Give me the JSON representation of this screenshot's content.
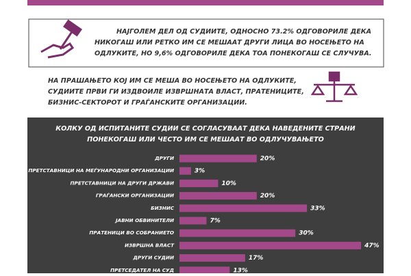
{
  "intro": {
    "lines": [
      "НАЈГОЛЕМ ДЕЛ ОД СУДИИТЕ, ОДНОСНО 73.2% ОДГОВОРИЛЕ ДЕКА",
      "НИКОГАШ ИЛИ РЕТКО ИМ СЕ МЕШААТ ДРУГИ ЛИЦА ВО НОСЕЊЕТО НА",
      "ОДЛУКИТЕ, НО 9,6% ОДГОВОРИЛЕ ДЕКА ТОА ПОНЕКОГАШ СЕ СЛУЧУВА."
    ]
  },
  "second": {
    "lines": [
      "НА ПРАШАЊЕТО КОЈ ИМ СЕ МЕША ВО НОСЕЊЕТО НА ОДЛУКИТЕ,",
      "СУДИИТЕ ПРВИ ГИ ИЗДВОИЛЕ ИЗВРШНАТА ВЛАСТ, ПРАТЕНИЦИТЕ,",
      "БИЗНИС-СЕКТОРОТ И ГРАЃАНСКИТЕ ОРГАНИЗАЦИИ."
    ]
  },
  "chart_data": {
    "type": "hbar",
    "title": [
      "КОЛКУ ОД ИСПИТАНИТЕ СУДИИ СЕ СОГЛАСУВААТ ДЕКА НАВЕДЕНИТЕ СТРАНИ",
      "ПОНЕКОГАШ ИЛИ ЧЕСТО ИМ СЕ МЕШААТ ВО ОДЛУЧУВАЊЕТО"
    ],
    "categories": [
      "ДРУГИ",
      "ПРЕТСТАВНИЦИ НА МЕЃУНАРОДНИ ОРГАНИЗАЦИИ",
      "ПРЕТСТАВНИЦИ НА ДРУГИ ДРЖАВИ",
      "ГРАЃАНСКИ ОРГАНИЗАЦИИ",
      "БИЗНИС",
      "ЈАВНИ ОБВИНИТЕЛИ",
      "ПРАТЕНИЦИ ВО СОБРАНИЕТО",
      "ИЗВРШНА ВЛАСТ",
      "ДРУГИ СУДИИ",
      "ПРЕТСЕДАТЕЛ НА СУД"
    ],
    "values": [
      20,
      3,
      10,
      20,
      33,
      7,
      30,
      47,
      17,
      13
    ],
    "value_labels": [
      "20%",
      "3%",
      "10%",
      "20%",
      "33%",
      "7%",
      "30%",
      "47%",
      "17%",
      "13%"
    ],
    "color": "#a3498a"
  }
}
